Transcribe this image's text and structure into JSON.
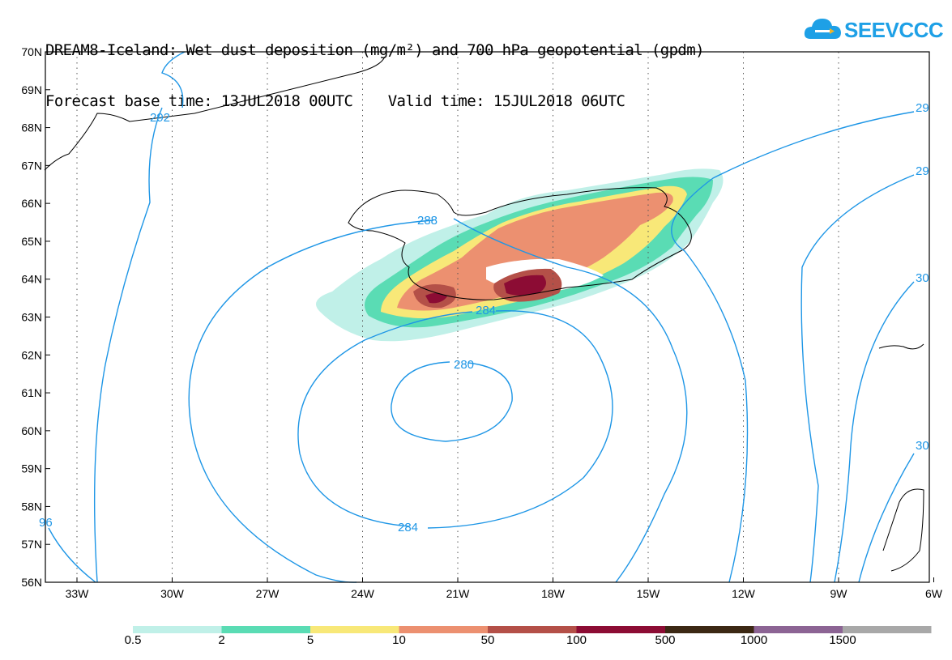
{
  "header": {
    "line1": "DREAM8-Iceland: Wet dust deposition (mg/m²) and 700 hPa geopotential (gpdm)",
    "line2": "Forecast base time: 13JUL2018 00UTC    Valid time: 15JUL2018 06UTC"
  },
  "logo": {
    "text": "SEEVCCC",
    "color": "#1ea0e6"
  },
  "axes": {
    "lat_labels": [
      "70N",
      "69N",
      "68N",
      "67N",
      "66N",
      "65N",
      "64N",
      "63N",
      "62N",
      "61N",
      "60N",
      "59N",
      "58N",
      "57N",
      "56N"
    ],
    "lon_labels": [
      "33W",
      "30W",
      "27W",
      "24W",
      "21W",
      "18W",
      "15W",
      "12W",
      "9W",
      "6W"
    ]
  },
  "contour_labels": {
    "c280": "280",
    "c284a": "284",
    "c284b": "284",
    "c288": "288",
    "c292": "292",
    "c296a": "96",
    "c296b": "29",
    "c296c": "29",
    "c300a": "30",
    "c300b": "30"
  },
  "colors": {
    "contour": "#1e96e6",
    "coast": "#000000",
    "grid": "#555555"
  },
  "legend": {
    "colors": [
      "#c0f0e8",
      "#5adcb4",
      "#f8e878",
      "#ec9070",
      "#b45048",
      "#8c0c34",
      "#3c2814",
      "#8c6494",
      "#a8a8a8"
    ],
    "labels": [
      "0.5",
      "2",
      "5",
      "10",
      "50",
      "100",
      "500",
      "1000",
      "1500"
    ]
  }
}
